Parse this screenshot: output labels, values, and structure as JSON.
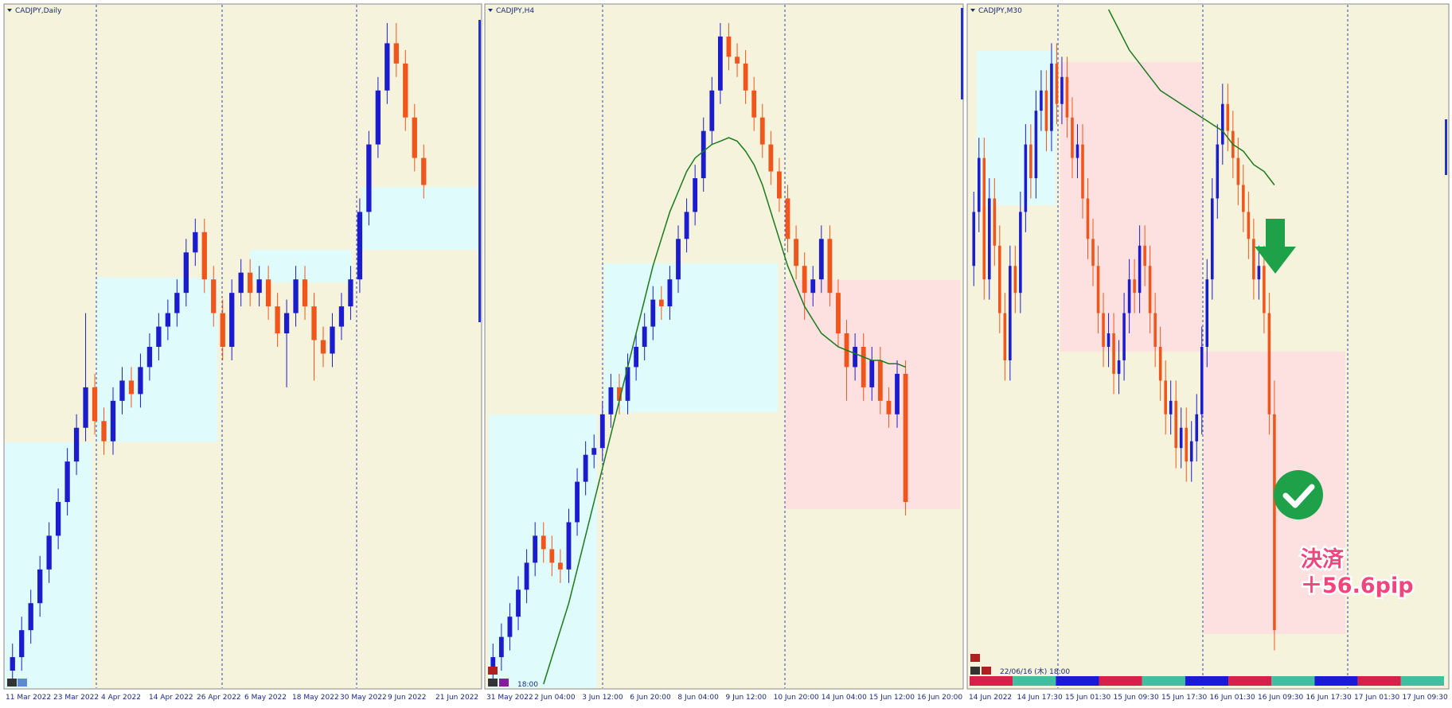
{
  "panels": [
    {
      "title": "CADJPY,Daily",
      "x_labels": [
        "11 Mar 2022",
        "23 Mar 2022",
        "4 Apr 2022",
        "14 Apr 2022",
        "26 Apr 2022",
        "6 May 2022",
        "18 May 2022",
        "30 May 2022",
        "9 Jun 2022",
        "21 Jun 2022"
      ],
      "open": [
        2,
        4,
        8,
        12,
        17,
        22,
        27,
        33,
        38,
        44,
        39,
        36,
        42,
        45,
        43,
        47,
        50,
        53,
        55,
        58,
        64,
        67,
        60,
        55,
        50,
        58,
        61,
        58,
        60,
        56,
        52,
        55,
        60,
        56,
        51,
        49,
        53,
        56,
        60,
        70,
        80,
        88,
        95,
        92,
        84,
        78
      ],
      "high": [
        6,
        10,
        14,
        19,
        24,
        29,
        35,
        40,
        55,
        46,
        41,
        44,
        47,
        47,
        49,
        52,
        55,
        57,
        60,
        66,
        69,
        69,
        62,
        57,
        60,
        63,
        63,
        62,
        62,
        58,
        57,
        62,
        62,
        58,
        53,
        55,
        58,
        62,
        72,
        82,
        90,
        98,
        98,
        94,
        86,
        80
      ],
      "low": [
        0,
        2,
        6,
        10,
        15,
        20,
        25,
        31,
        36,
        37,
        34,
        34,
        40,
        41,
        41,
        45,
        48,
        51,
        53,
        56,
        62,
        58,
        53,
        48,
        48,
        56,
        56,
        56,
        54,
        50,
        44,
        53,
        54,
        45,
        47,
        47,
        51,
        54,
        58,
        68,
        78,
        86,
        90,
        82,
        76,
        72
      ],
      "close": [
        4,
        8,
        12,
        17,
        22,
        27,
        33,
        38,
        44,
        39,
        36,
        42,
        45,
        43,
        47,
        50,
        53,
        55,
        58,
        64,
        67,
        60,
        55,
        50,
        58,
        61,
        58,
        60,
        56,
        52,
        55,
        60,
        56,
        51,
        49,
        53,
        56,
        60,
        70,
        80,
        88,
        95,
        92,
        84,
        78,
        74
      ]
    },
    {
      "title": "CADJPY,H4",
      "x_labels": [
        "31 May 2022",
        "2 Jun 04:00",
        "3 Jun 12:00",
        "6 Jun 20:00",
        "8 Jun 04:00",
        "9 Jun 12:00",
        "10 Jun 20:00",
        "14 Jun 04:00",
        "15 Jun 12:00",
        "16 Jun 20:00"
      ],
      "time_label": "18:00",
      "open": [
        2,
        4,
        7,
        10,
        14,
        18,
        22,
        20,
        18,
        17,
        24,
        30,
        34,
        35,
        40,
        44,
        42,
        47,
        50,
        53,
        57,
        56,
        60,
        66,
        70,
        75,
        82,
        88,
        96,
        93,
        92,
        88,
        84,
        80,
        76,
        72,
        66,
        62,
        58,
        60,
        66,
        58,
        52,
        47,
        50,
        44,
        48,
        42,
        40,
        46
      ],
      "high": [
        6,
        9,
        12,
        16,
        20,
        24,
        24,
        22,
        20,
        26,
        32,
        36,
        37,
        42,
        46,
        46,
        49,
        52,
        55,
        59,
        59,
        62,
        68,
        72,
        77,
        84,
        90,
        98,
        98,
        95,
        94,
        90,
        86,
        82,
        78,
        74,
        68,
        64,
        62,
        68,
        68,
        60,
        54,
        52,
        52,
        50,
        50,
        44,
        48,
        48
      ],
      "low": [
        0,
        2,
        5,
        8,
        12,
        16,
        18,
        16,
        15,
        15,
        22,
        28,
        32,
        33,
        38,
        40,
        40,
        45,
        48,
        51,
        54,
        54,
        58,
        64,
        68,
        73,
        80,
        86,
        91,
        90,
        86,
        82,
        78,
        74,
        70,
        64,
        60,
        54,
        56,
        58,
        56,
        50,
        42,
        45,
        42,
        42,
        40,
        38,
        38,
        25
      ],
      "close": [
        4,
        7,
        10,
        14,
        18,
        22,
        20,
        18,
        17,
        24,
        30,
        34,
        35,
        40,
        44,
        42,
        47,
        50,
        53,
        57,
        56,
        60,
        66,
        70,
        75,
        82,
        88,
        96,
        93,
        92,
        88,
        84,
        80,
        76,
        72,
        66,
        62,
        58,
        60,
        66,
        58,
        52,
        47,
        50,
        44,
        48,
        42,
        40,
        46,
        27
      ],
      "ma": [
        null,
        null,
        null,
        null,
        null,
        null,
        0,
        4,
        8,
        12,
        17,
        22,
        27,
        32,
        37,
        42,
        47,
        52,
        57,
        62,
        66,
        70,
        73,
        76,
        78,
        79,
        80,
        80.5,
        81,
        80.5,
        79,
        77,
        74,
        70,
        66,
        62,
        59,
        56,
        54,
        52,
        51,
        50,
        49.5,
        49,
        48.5,
        48,
        48,
        47.5,
        47.5,
        47
      ]
    },
    {
      "title": "CADJPY,M30",
      "x_labels": [
        "14 Jun 2022",
        "14 Jun 17:30",
        "15 Jun 01:30",
        "15 Jun 09:30",
        "15 Jun 17:30",
        "16 Jun 01:30",
        "16 Jun 09:30",
        "16 Jun 17:30",
        "17 Jun 01:30",
        "17 Jun 09:30"
      ],
      "time_label": "22/06/16 (木) 18:00",
      "open": [
        62,
        70,
        78,
        60,
        72,
        65,
        55,
        48,
        62,
        58,
        70,
        80,
        75,
        85,
        88,
        82,
        92,
        86,
        90,
        84,
        78,
        80,
        72,
        66,
        62,
        55,
        50,
        52,
        46,
        48,
        55,
        60,
        58,
        65,
        62,
        55,
        50,
        45,
        40,
        42,
        35,
        38,
        33,
        36,
        40,
        50,
        60,
        72,
        80,
        86,
        82,
        78,
        74,
        70,
        66,
        60,
        62,
        55,
        40
      ],
      "high": [
        73,
        81,
        81,
        75,
        75,
        68,
        58,
        65,
        65,
        73,
        83,
        83,
        88,
        91,
        91,
        95,
        95,
        93,
        93,
        87,
        83,
        83,
        75,
        69,
        65,
        58,
        55,
        55,
        51,
        58,
        63,
        63,
        68,
        68,
        65,
        58,
        53,
        48,
        45,
        45,
        41,
        41,
        39,
        43,
        53,
        63,
        75,
        83,
        89,
        89,
        85,
        81,
        77,
        73,
        69,
        65,
        65,
        58,
        45
      ],
      "low": [
        59,
        67,
        57,
        57,
        62,
        52,
        45,
        45,
        55,
        55,
        67,
        72,
        72,
        82,
        79,
        79,
        83,
        83,
        81,
        75,
        75,
        69,
        63,
        59,
        52,
        47,
        47,
        43,
        43,
        45,
        52,
        55,
        55,
        59,
        52,
        47,
        42,
        37,
        37,
        32,
        32,
        30,
        30,
        33,
        37,
        47,
        57,
        69,
        77,
        79,
        75,
        71,
        67,
        63,
        57,
        57,
        52,
        37,
        5
      ],
      "close": [
        70,
        78,
        60,
        72,
        65,
        55,
        48,
        62,
        58,
        70,
        80,
        75,
        85,
        88,
        82,
        92,
        86,
        90,
        84,
        78,
        80,
        72,
        66,
        62,
        55,
        50,
        52,
        46,
        48,
        55,
        60,
        58,
        65,
        62,
        55,
        50,
        45,
        40,
        42,
        35,
        38,
        33,
        36,
        40,
        50,
        60,
        72,
        80,
        86,
        82,
        78,
        74,
        70,
        66,
        60,
        62,
        55,
        40,
        8
      ],
      "ma": [
        null,
        null,
        null,
        null,
        null,
        null,
        null,
        null,
        null,
        null,
        null,
        null,
        null,
        null,
        null,
        null,
        null,
        null,
        null,
        null,
        null,
        null,
        null,
        null,
        null,
        null,
        100,
        98.5,
        97,
        95.5,
        94,
        93,
        92,
        91,
        90,
        89,
        88,
        87.5,
        87,
        86.5,
        86,
        85.5,
        85,
        84.5,
        84,
        83.5,
        83,
        82.5,
        82,
        81,
        80,
        79.5,
        79,
        78,
        77,
        76.5,
        76,
        75,
        74
      ]
    }
  ],
  "up_color": "#1c1ccf",
  "down_color": "#f0561c",
  "ma_color": "#1a7a1a",
  "annotation": {
    "lines": [
      "決済",
      "＋56.6pip"
    ],
    "color": "#f2457c"
  }
}
